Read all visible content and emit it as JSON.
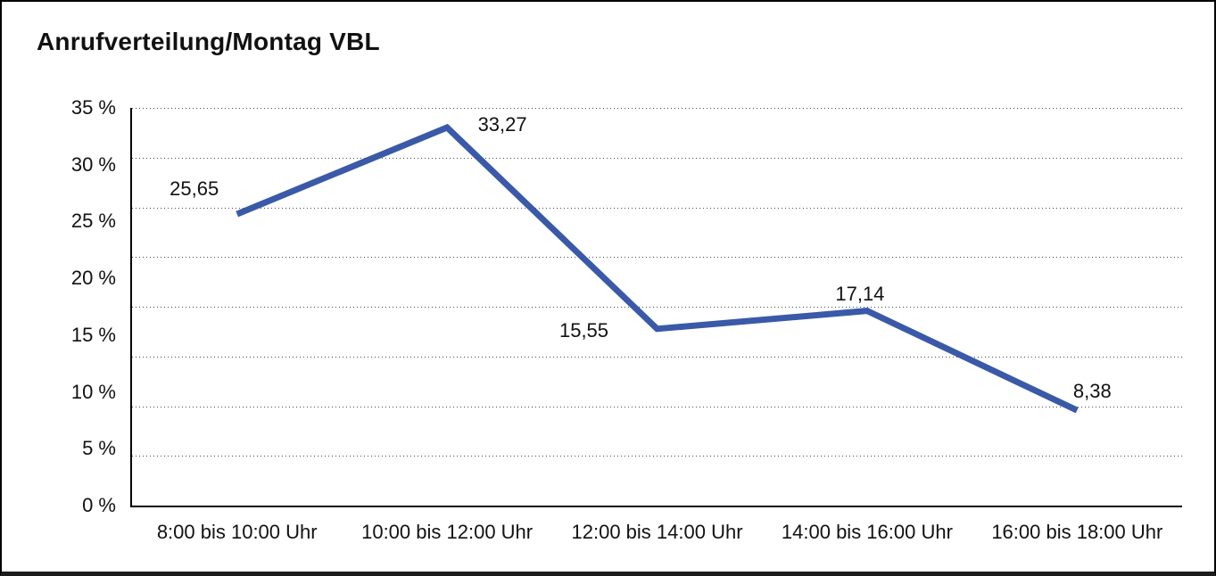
{
  "title": "Anrufverteilung/Montag VBL",
  "colors": {
    "line": "#3A59A8",
    "text": "#111111",
    "grid": "#4a4a4a",
    "axis": "#000000",
    "background": "#ffffff",
    "frame_border": "#000000"
  },
  "chart_data": {
    "type": "line",
    "title": "Anrufverteilung/Montag VBL",
    "categories": [
      "8:00 bis 10:00 Uhr",
      "10:00 bis 12:00 Uhr",
      "12:00 bis 14:00 Uhr",
      "14:00 bis 16:00 Uhr",
      "16:00 bis 18:00 Uhr"
    ],
    "values": [
      25.65,
      33.27,
      15.55,
      17.14,
      8.38
    ],
    "value_labels": [
      "25,65",
      "33,27",
      "15,55",
      "17,14",
      "8,38"
    ],
    "unit": "%",
    "xlabel": "",
    "ylabel": "",
    "ylim": [
      0,
      35
    ],
    "yticks": [
      {
        "value": 35,
        "label": "35 %"
      },
      {
        "value": 30,
        "label": "30 %"
      },
      {
        "value": 25,
        "label": "25 %"
      },
      {
        "value": 20,
        "label": "20 %"
      },
      {
        "value": 15,
        "label": "15 %"
      },
      {
        "value": 10,
        "label": "10 %"
      },
      {
        "value": 5,
        "label": "5 %"
      },
      {
        "value": 0,
        "label": "0 %"
      }
    ],
    "grid": {
      "style": "dotted",
      "horizontal_divisions": 8,
      "vertical": false
    },
    "legend": "none",
    "line_width": 7
  }
}
